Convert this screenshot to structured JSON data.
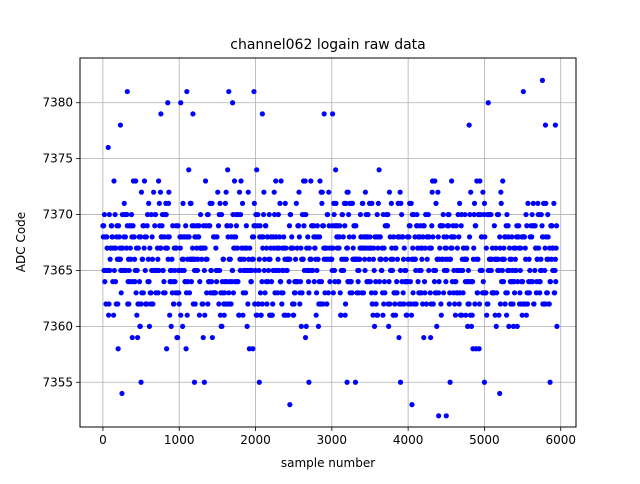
{
  "chart_data": {
    "type": "scatter",
    "title": "channel062 logain raw data",
    "xlabel": "sample number",
    "ylabel": "ADC Code",
    "xlim": [
      -300,
      6200
    ],
    "ylim": [
      7351,
      7384
    ],
    "xticks": [
      0,
      1000,
      2000,
      3000,
      4000,
      5000,
      6000
    ],
    "yticks": [
      7355,
      7360,
      7365,
      7370,
      7375,
      7380
    ],
    "grid": true,
    "marker_color": "#0000ff",
    "series": [
      {
        "marker": "dot",
        "x_range": [
          0,
          5950
        ],
        "typical_y_range": [
          7357,
          7375
        ],
        "center": 7366,
        "points": [
          {
            "x": 70,
            "y": 7376
          },
          {
            "x": 230,
            "y": 7378
          },
          {
            "x": 250,
            "y": 7354
          },
          {
            "x": 320,
            "y": 7381
          },
          {
            "x": 500,
            "y": 7355
          },
          {
            "x": 760,
            "y": 7379
          },
          {
            "x": 850,
            "y": 7380
          },
          {
            "x": 1020,
            "y": 7380
          },
          {
            "x": 1100,
            "y": 7381
          },
          {
            "x": 1180,
            "y": 7379
          },
          {
            "x": 1200,
            "y": 7355
          },
          {
            "x": 1330,
            "y": 7355
          },
          {
            "x": 1650,
            "y": 7381
          },
          {
            "x": 1700,
            "y": 7380
          },
          {
            "x": 1980,
            "y": 7381
          },
          {
            "x": 2050,
            "y": 7355
          },
          {
            "x": 2090,
            "y": 7379
          },
          {
            "x": 2450,
            "y": 7353
          },
          {
            "x": 2700,
            "y": 7355
          },
          {
            "x": 2900,
            "y": 7379
          },
          {
            "x": 3010,
            "y": 7379
          },
          {
            "x": 3200,
            "y": 7355
          },
          {
            "x": 3310,
            "y": 7355
          },
          {
            "x": 3900,
            "y": 7355
          },
          {
            "x": 4050,
            "y": 7353
          },
          {
            "x": 4400,
            "y": 7352
          },
          {
            "x": 4500,
            "y": 7352
          },
          {
            "x": 4550,
            "y": 7355
          },
          {
            "x": 4800,
            "y": 7378
          },
          {
            "x": 5000,
            "y": 7355
          },
          {
            "x": 5050,
            "y": 7380
          },
          {
            "x": 5200,
            "y": 7354
          },
          {
            "x": 5510,
            "y": 7381
          },
          {
            "x": 5760,
            "y": 7382
          },
          {
            "x": 5800,
            "y": 7378
          },
          {
            "x": 5860,
            "y": 7355
          },
          {
            "x": 5930,
            "y": 7378
          }
        ]
      }
    ]
  }
}
